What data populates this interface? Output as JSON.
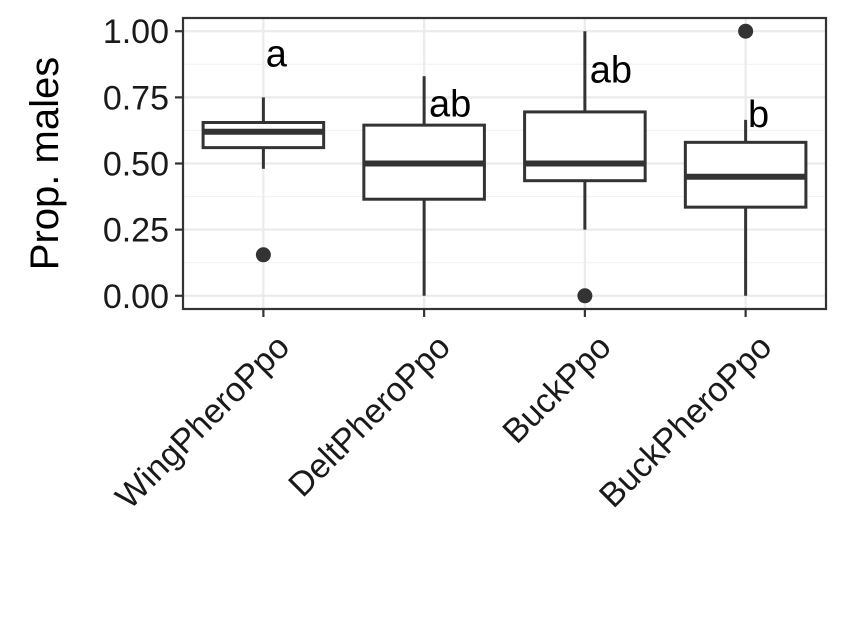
{
  "chart_data": {
    "type": "boxplot",
    "title": "",
    "xlabel": "",
    "ylabel": "Prop. males",
    "ylim": [
      -0.05,
      1.05
    ],
    "y_ticks": [
      0.0,
      0.25,
      0.5,
      0.75,
      1.0
    ],
    "y_tick_labels": [
      "0.00",
      "0.25",
      "0.50",
      "0.75",
      "1.00"
    ],
    "grid": true,
    "legend": "none",
    "categories": [
      "WingPheroPpo",
      "DeltPheroPpo",
      "BuckPpo",
      "BuckPheroPpo"
    ],
    "boxes": [
      {
        "category": "WingPheroPpo",
        "min": 0.48,
        "q1": 0.56,
        "median": 0.62,
        "q3": 0.655,
        "max": 0.75,
        "outliers": [
          0.155
        ],
        "letter": "a"
      },
      {
        "category": "DeltPheroPpo",
        "min": 0.0,
        "q1": 0.365,
        "median": 0.5,
        "q3": 0.645,
        "max": 0.83,
        "outliers": [],
        "letter": "ab"
      },
      {
        "category": "BuckPpo",
        "min": 0.25,
        "q1": 0.435,
        "median": 0.5,
        "q3": 0.695,
        "max": 1.0,
        "outliers": [
          0.0
        ],
        "letter": "ab"
      },
      {
        "category": "BuckPheroPpo",
        "min": 0.0,
        "q1": 0.335,
        "median": 0.45,
        "q3": 0.58,
        "max": 0.665,
        "outliers": [
          1.0
        ],
        "letter": "b"
      }
    ],
    "colors": {
      "box_line": "#333333",
      "grid": "#ebebeb",
      "panel_border": "#333333"
    }
  }
}
